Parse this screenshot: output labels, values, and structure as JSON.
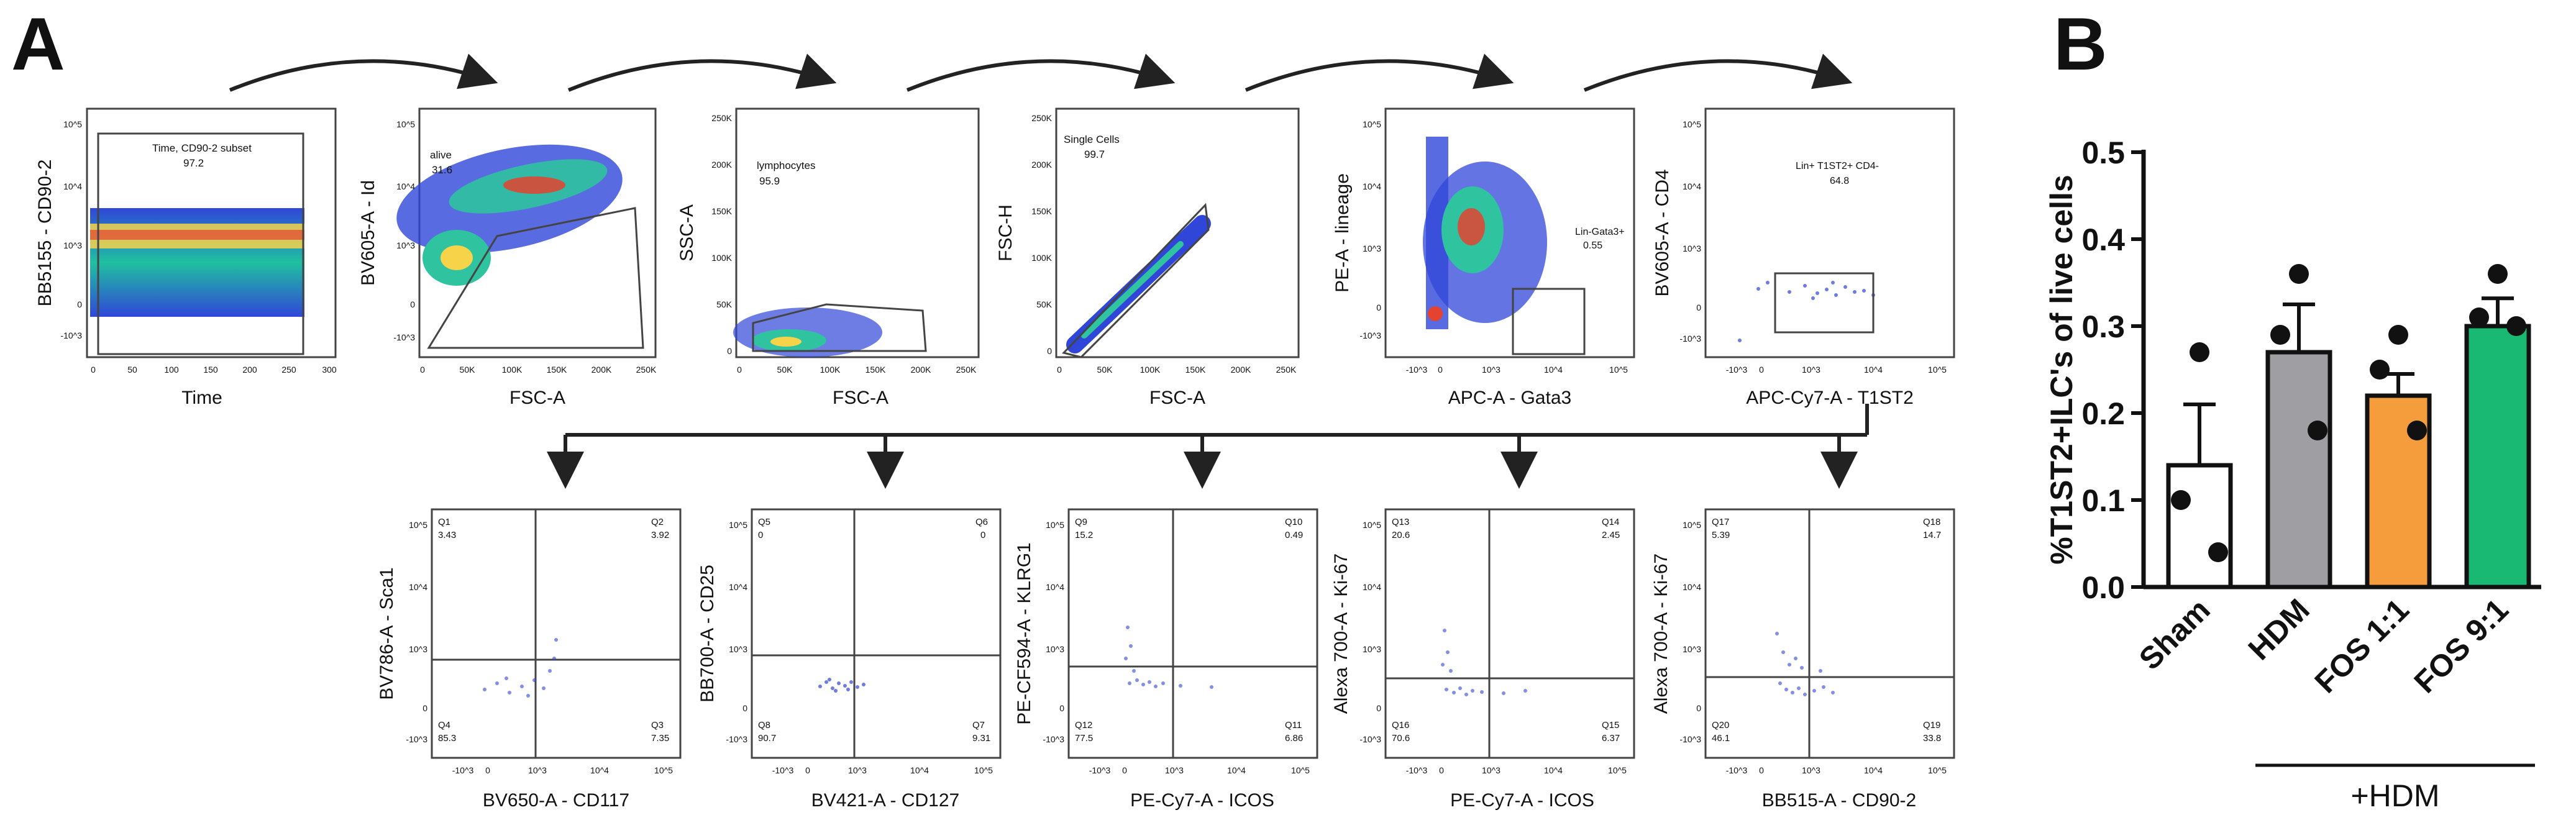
{
  "panel_letters": {
    "a": "A",
    "b": "B"
  },
  "gating": {
    "plots": [
      {
        "id": "p1",
        "xlabel": "Time",
        "ylabel": "BB5155 - CD90-2",
        "x_ticks": [
          "0",
          "50",
          "100",
          "150",
          "200",
          "250",
          "300"
        ],
        "y_ticks": [
          "10^5",
          "10^4",
          "10^3",
          "0",
          "-10^3"
        ],
        "gate_label": "Time, CD90-2 subset",
        "gate_value": "97.2"
      },
      {
        "id": "p2",
        "xlabel": "FSC-A",
        "ylabel": "BV605-A - Id",
        "x_ticks": [
          "0",
          "50K",
          "100K",
          "150K",
          "200K",
          "250K"
        ],
        "y_ticks": [
          "10^5",
          "10^4",
          "10^3",
          "0",
          "-10^3"
        ],
        "gate_label": "alive",
        "gate_value": "31.6"
      },
      {
        "id": "p3",
        "xlabel": "FSC-A",
        "ylabel": "SSC-A",
        "x_ticks": [
          "0",
          "50K",
          "100K",
          "150K",
          "200K",
          "250K"
        ],
        "y_ticks": [
          "250K",
          "200K",
          "150K",
          "100K",
          "50K",
          "0"
        ],
        "gate_label": "lymphocytes",
        "gate_value": "95.9"
      },
      {
        "id": "p4",
        "xlabel": "FSC-A",
        "ylabel": "FSC-H",
        "x_ticks": [
          "0",
          "50K",
          "100K",
          "150K",
          "200K",
          "250K"
        ],
        "y_ticks": [
          "250K",
          "200K",
          "150K",
          "100K",
          "50K",
          "0"
        ],
        "gate_label": "Single Cells",
        "gate_value": "99.7"
      },
      {
        "id": "p5",
        "xlabel": "APC-A - Gata3",
        "ylabel": "PE-A - lineage",
        "x_ticks": [
          "-10^3",
          "0",
          "10^3",
          "10^4",
          "10^5"
        ],
        "y_ticks": [
          "10^5",
          "10^4",
          "10^3",
          "0",
          "-10^3"
        ],
        "gate_label": "Lin-Gata3+",
        "gate_value": "0.55"
      },
      {
        "id": "p6",
        "xlabel": "APC-Cy7-A - T1ST2",
        "ylabel": "BV605-A - CD4",
        "x_ticks": [
          "-10^3",
          "0",
          "10^3",
          "10^4",
          "10^5"
        ],
        "y_ticks": [
          "10^5",
          "10^4",
          "10^3",
          "0",
          "-10^3"
        ],
        "gate_label": "Lin+ T1ST2+ CD4-",
        "gate_value": "64.8"
      }
    ],
    "quad_plots": [
      {
        "id": "q1",
        "xlabel": "BV650-A - CD117",
        "ylabel": "BV786-A - Sca1",
        "x_ticks": [
          "-10^3",
          "0",
          "10^3",
          "10^4",
          "10^5"
        ],
        "y_ticks": [
          "10^5",
          "10^4",
          "10^3",
          "0",
          "-10^3"
        ],
        "quadrants": [
          {
            "name": "Q1",
            "value": "3.43"
          },
          {
            "name": "Q2",
            "value": "3.92"
          },
          {
            "name": "Q3",
            "value": "7.35"
          },
          {
            "name": "Q4",
            "value": "85.3"
          }
        ]
      },
      {
        "id": "q2",
        "xlabel": "BV421-A - CD127",
        "ylabel": "BB700-A - CD25",
        "x_ticks": [
          "-10^3",
          "0",
          "10^3",
          "10^4",
          "10^5"
        ],
        "y_ticks": [
          "10^5",
          "10^4",
          "10^3",
          "0",
          "-10^3"
        ],
        "quadrants": [
          {
            "name": "Q5",
            "value": "0"
          },
          {
            "name": "Q6",
            "value": "0"
          },
          {
            "name": "Q7",
            "value": "9.31"
          },
          {
            "name": "Q8",
            "value": "90.7"
          }
        ]
      },
      {
        "id": "q3",
        "xlabel": "PE-Cy7-A - ICOS",
        "ylabel": "PE-CF594-A - KLRG1",
        "x_ticks": [
          "-10^3",
          "0",
          "10^3",
          "10^4",
          "10^5"
        ],
        "y_ticks": [
          "10^5",
          "10^4",
          "10^3",
          "0",
          "-10^3"
        ],
        "quadrants": [
          {
            "name": "Q9",
            "value": "15.2"
          },
          {
            "name": "Q10",
            "value": "0.49"
          },
          {
            "name": "Q11",
            "value": "6.86"
          },
          {
            "name": "Q12",
            "value": "77.5"
          }
        ]
      },
      {
        "id": "q4",
        "xlabel": "PE-Cy7-A - ICOS",
        "ylabel": "Alexa 700-A - Ki-67",
        "x_ticks": [
          "-10^3",
          "0",
          "10^3",
          "10^4",
          "10^5"
        ],
        "y_ticks": [
          "10^5",
          "10^4",
          "10^3",
          "0",
          "-10^3"
        ],
        "quadrants": [
          {
            "name": "Q13",
            "value": "20.6"
          },
          {
            "name": "Q14",
            "value": "2.45"
          },
          {
            "name": "Q15",
            "value": "6.37"
          },
          {
            "name": "Q16",
            "value": "70.6"
          }
        ]
      },
      {
        "id": "q5",
        "xlabel": "BB515-A - CD90-2",
        "ylabel": "Alexa 700-A - Ki-67",
        "x_ticks": [
          "-10^3",
          "0",
          "10^3",
          "10^4",
          "10^5"
        ],
        "y_ticks": [
          "10^5",
          "10^4",
          "10^3",
          "0",
          "-10^3"
        ],
        "quadrants": [
          {
            "name": "Q17",
            "value": "5.39"
          },
          {
            "name": "Q18",
            "value": "14.7"
          },
          {
            "name": "Q19",
            "value": "33.8"
          },
          {
            "name": "Q20",
            "value": "46.1"
          }
        ]
      }
    ]
  },
  "chart_data": {
    "type": "bar",
    "title": "",
    "ylabel": "%T1ST2+ILC's of live cells",
    "xlabel": "",
    "ylim": [
      0,
      0.5
    ],
    "yticks": [
      "0.0",
      "0.1",
      "0.2",
      "0.3",
      "0.4",
      "0.5"
    ],
    "categories": [
      "Sham",
      "HDM",
      "FOS 1:1",
      "FOS 9:1"
    ],
    "values": [
      0.14,
      0.27,
      0.22,
      0.3
    ],
    "errors": [
      0.07,
      0.055,
      0.025,
      0.032
    ],
    "points": [
      [
        0.27,
        0.1,
        0.04
      ],
      [
        0.36,
        0.29,
        0.18
      ],
      [
        0.29,
        0.25,
        0.18
      ],
      [
        0.36,
        0.31,
        0.3
      ]
    ],
    "colors": [
      "#ffffff",
      "#9e9ea3",
      "#f59d3d",
      "#19b873"
    ],
    "group_label": "+HDM"
  }
}
